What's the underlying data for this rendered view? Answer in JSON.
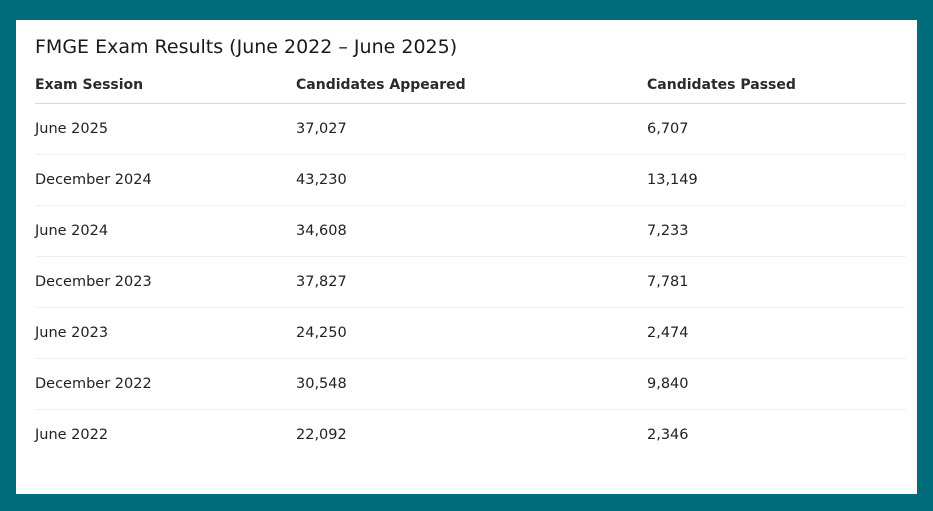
{
  "title": "FMGE Exam Results (June 2022 – June 2025)",
  "table": {
    "headers": [
      "Exam Session",
      "Candidates Appeared",
      "Candidates Passed"
    ],
    "rows": [
      [
        "June 2025",
        "37,027",
        "6,707"
      ],
      [
        "December 2024",
        "43,230",
        "13,149"
      ],
      [
        "June 2024",
        "34,608",
        "7,233"
      ],
      [
        "December 2023",
        "37,827",
        "7,781"
      ],
      [
        "June 2023",
        "24,250",
        "2,474"
      ],
      [
        "December 2022",
        "30,548",
        "9,840"
      ],
      [
        "June 2022",
        "22,092",
        "2,346"
      ]
    ]
  },
  "colors": {
    "background": "#006b7b",
    "card": "#ffffff"
  }
}
